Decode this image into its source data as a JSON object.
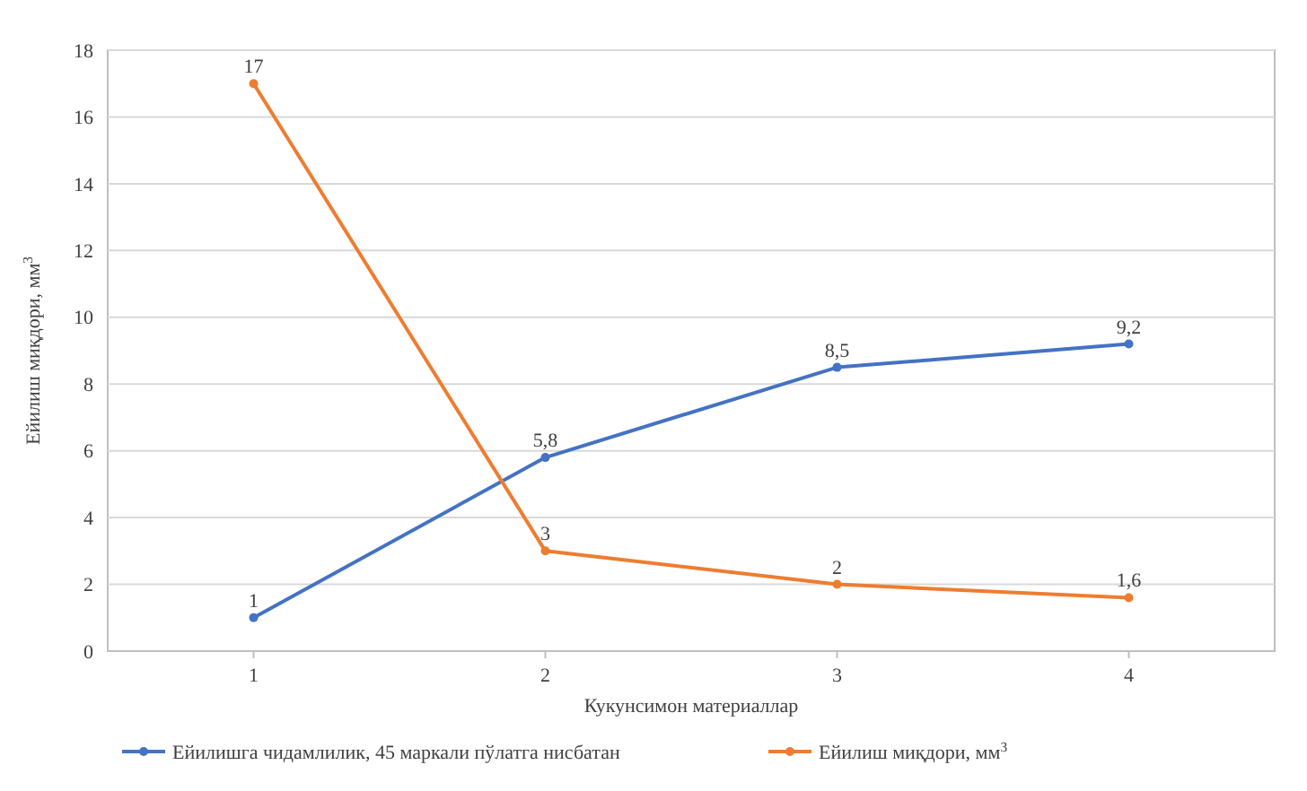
{
  "chart_data": {
    "type": "line",
    "xlabel": "Кукунсимон материаллар",
    "ylabel": "Ейилиш миқдори, мм$^{3}$",
    "categories": [
      "1",
      "2",
      "3",
      "4"
    ],
    "series": [
      {
        "name": "Ейилишга чидамлилик, 45 маркали пўлатга нисбатан",
        "color": "#4472c4",
        "values": [
          1,
          5.8,
          8.5,
          9.2
        ],
        "value_labels": [
          "1",
          "5,8",
          "8,5",
          "9,2"
        ]
      },
      {
        "name": "Ейилиш миқдори, мм$^{3}$",
        "color": "#ed7d31",
        "values": [
          17,
          3,
          2,
          1.6
        ],
        "value_labels": [
          "17",
          "3",
          "2",
          "1,6"
        ]
      }
    ],
    "ylim": [
      0,
      18
    ],
    "yticks": [
      0,
      2,
      4,
      6,
      8,
      10,
      12,
      14,
      16,
      18
    ],
    "grid": "y",
    "legend": "bottom",
    "marker": "circle",
    "line_style": "solid"
  }
}
